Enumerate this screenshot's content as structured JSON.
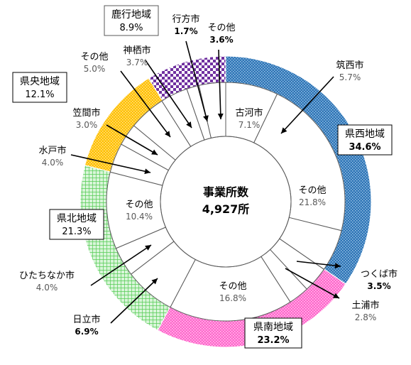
{
  "chart_data": {
    "type": "pie",
    "center_text": [
      "事業所数",
      "4,927所"
    ],
    "regions": [
      {
        "name": "県西地域",
        "percent": "34.6%",
        "value": 34.6,
        "color": "#2e75b6",
        "pattern": "dots"
      },
      {
        "name": "県南地域",
        "percent": "23.2%",
        "value": 23.2,
        "color": "#ff66cc",
        "pattern": "dots"
      },
      {
        "name": "県北地域",
        "percent": "21.3%",
        "value": 21.3,
        "color": "#66dd66",
        "pattern": "grid"
      },
      {
        "name": "県央地域",
        "percent": "12.1%",
        "value": 12.1,
        "color": "#ffcc33",
        "pattern": "dots"
      },
      {
        "name": "鹿行地域",
        "percent": "8.9%",
        "value": 8.9,
        "color": "#7030a0",
        "pattern": "checker"
      }
    ],
    "cities": [
      {
        "name": "古河市",
        "percent": "7.1%",
        "value": 7.1,
        "region": "県西地域"
      },
      {
        "name": "その他",
        "percent": "21.8%",
        "value": 21.8,
        "region": "県西地域"
      },
      {
        "name": "筑西市",
        "percent": "5.7%",
        "value": 5.7,
        "region": "県西地域"
      },
      {
        "name": "つくば市",
        "percent": "3.5%",
        "value": 3.5,
        "region": "県南地域"
      },
      {
        "name": "土浦市",
        "percent": "2.8%",
        "value": 2.8,
        "region": "県南地域"
      },
      {
        "name": "その他",
        "percent": "16.8%",
        "value": 16.8,
        "region": "県南地域"
      },
      {
        "name": "日立市",
        "percent": "6.9%",
        "value": 6.9,
        "region": "県北地域"
      },
      {
        "name": "ひたちなか市",
        "percent": "4.0%",
        "value": 4.0,
        "region": "県北地域"
      },
      {
        "name": "その他",
        "percent": "10.4%",
        "value": 10.4,
        "region": "県北地域"
      },
      {
        "name": "水戸市",
        "percent": "4.0%",
        "value": 4.0,
        "region": "県央地域"
      },
      {
        "name": "笠間市",
        "percent": "3.0%",
        "value": 3.0,
        "region": "県央地域"
      },
      {
        "name": "その他",
        "percent": "5.0%",
        "value": 5.0,
        "region": "県央地域"
      },
      {
        "name": "神栖市",
        "percent": "3.7%",
        "value": 3.7,
        "region": "鹿行地域"
      },
      {
        "name": "行方市",
        "percent": "1.7%",
        "value": 1.7,
        "region": "鹿行地域"
      },
      {
        "name": "その他",
        "percent": "3.6%",
        "value": 3.6,
        "region": "鹿行地域"
      }
    ]
  }
}
